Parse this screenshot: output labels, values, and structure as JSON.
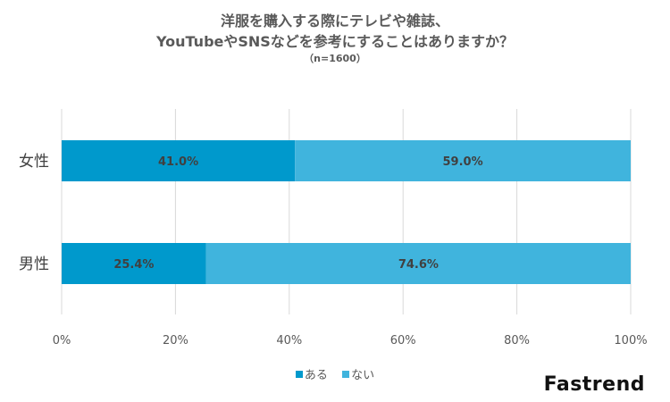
{
  "chart_data": {
    "type": "bar",
    "orientation": "horizontal",
    "stacked": true,
    "percent": true,
    "title_lines": [
      "洋服を購入する際にテレビや雑誌、",
      "YouTubeやSNSなどを参考にすることはありますか？"
    ],
    "subtitle": "（n=1600）",
    "categories": [
      "女性",
      "男性"
    ],
    "series": [
      {
        "name": "ある",
        "values": [
          41.0,
          25.4
        ],
        "labels": [
          "41.0%",
          "25.4%"
        ],
        "color": "#0099CC"
      },
      {
        "name": "ない",
        "values": [
          59.0,
          74.6
        ],
        "labels": [
          "59.0%",
          "74.6%"
        ],
        "color": "#40B4DD"
      }
    ],
    "xlim": [
      0,
      100
    ],
    "xticks": [
      "0%",
      "20%",
      "40%",
      "60%",
      "80%",
      "100%"
    ],
    "grid": true,
    "legend_position": "bottom"
  },
  "brand": "Fastrend"
}
